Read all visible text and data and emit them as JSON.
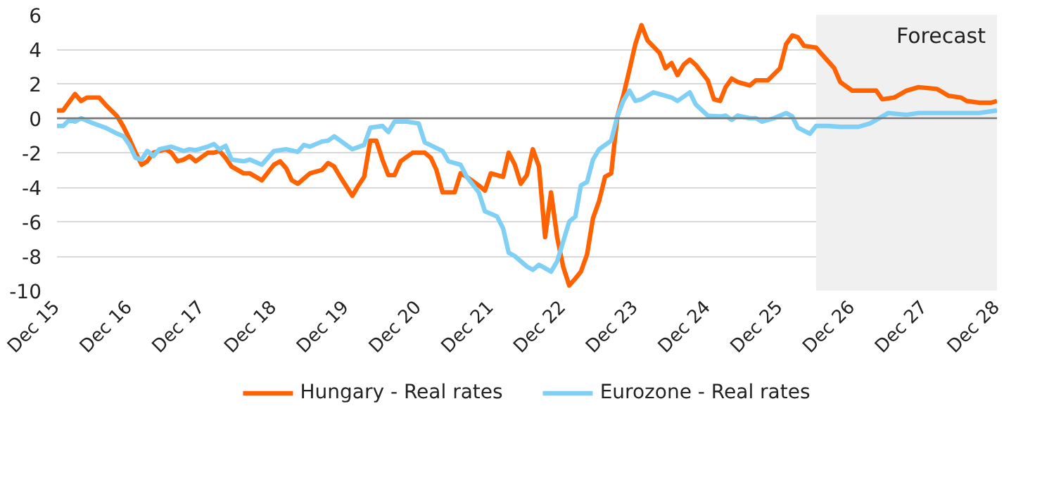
{
  "chart_data": {
    "type": "line",
    "xlim": [
      "2015-12",
      "2028-12"
    ],
    "xticks": [
      {
        "value": "2015-12",
        "label": "Dec 15"
      },
      {
        "value": "2016-12",
        "label": "Dec 16"
      },
      {
        "value": "2017-12",
        "label": "Dec 17"
      },
      {
        "value": "2018-12",
        "label": "Dec 18"
      },
      {
        "value": "2019-12",
        "label": "Dec 19"
      },
      {
        "value": "2020-12",
        "label": "Dec 20"
      },
      {
        "value": "2021-12",
        "label": "Dec 21"
      },
      {
        "value": "2022-12",
        "label": "Dec 22"
      },
      {
        "value": "2023-12",
        "label": "Dec 23"
      },
      {
        "value": "2024-12",
        "label": "Dec 24"
      },
      {
        "value": "2025-12",
        "label": "Dec 25"
      },
      {
        "value": "2026-12",
        "label": "Dec 26"
      },
      {
        "value": "2027-12",
        "label": "Dec 27"
      },
      {
        "value": "2028-12",
        "label": "Dec 28"
      }
    ],
    "ylim": [
      -10,
      6
    ],
    "yticks": [
      -10,
      -8,
      -6,
      -4,
      -2,
      0,
      2,
      4,
      6
    ],
    "grid": "y",
    "legend": "bottom",
    "marker": "none",
    "line_style": "solid",
    "bands": [
      {
        "axis": "x",
        "from": "2026-06",
        "to": "2028-12",
        "label": "Forecast",
        "color": "#f0f0f0"
      }
    ],
    "series": [
      {
        "name": "Hungary - Real rates",
        "color": "#ff6200",
        "x": [
          "2015-12",
          "2016-01",
          "2016-03",
          "2016-04",
          "2016-05",
          "2016-07",
          "2016-08",
          "2016-10",
          "2016-11",
          "2016-12",
          "2017-01",
          "2017-02",
          "2017-03",
          "2017-04",
          "2017-06",
          "2017-07",
          "2017-08",
          "2017-09",
          "2017-10",
          "2017-11",
          "2018-01",
          "2018-02",
          "2018-03",
          "2018-04",
          "2018-05",
          "2018-07",
          "2018-08",
          "2018-10",
          "2018-12",
          "2019-01",
          "2019-02",
          "2019-03",
          "2019-04",
          "2019-06",
          "2019-08",
          "2019-09",
          "2019-10",
          "2019-11",
          "2020-01",
          "2020-02",
          "2020-03",
          "2020-04",
          "2020-05",
          "2020-06",
          "2020-07",
          "2020-08",
          "2020-09",
          "2020-11",
          "2021-01",
          "2021-02",
          "2021-03",
          "2021-04",
          "2021-05",
          "2021-06",
          "2021-07",
          "2021-08",
          "2021-10",
          "2021-11",
          "2021-12",
          "2022-01",
          "2022-02",
          "2022-03",
          "2022-04",
          "2022-05",
          "2022-06",
          "2022-07",
          "2022-08",
          "2022-09",
          "2022-10",
          "2022-11",
          "2022-12",
          "2023-01",
          "2023-02",
          "2023-03",
          "2023-04",
          "2023-05",
          "2023-06",
          "2023-07",
          "2023-08",
          "2023-09",
          "2023-10",
          "2023-11",
          "2023-12",
          "2024-01",
          "2024-02",
          "2024-04",
          "2024-05",
          "2024-06",
          "2024-07",
          "2024-08",
          "2024-09",
          "2024-10",
          "2024-12",
          "2025-01",
          "2025-02",
          "2025-03",
          "2025-04",
          "2025-05",
          "2025-07",
          "2025-08",
          "2025-10",
          "2025-12",
          "2026-01",
          "2026-02",
          "2026-03",
          "2026-04",
          "2026-06",
          "2026-07",
          "2026-09",
          "2026-10",
          "2026-12",
          "2027-02",
          "2027-04",
          "2027-05",
          "2027-07",
          "2027-09",
          "2027-11",
          "2028-02",
          "2028-04",
          "2028-06",
          "2028-07",
          "2028-09",
          "2028-11",
          "2028-12"
        ],
        "values": [
          0.45,
          0.45,
          1.4,
          1.0,
          1.2,
          1.2,
          0.8,
          0.1,
          -0.5,
          -1.2,
          -2.0,
          -2.7,
          -2.5,
          -2.0,
          -1.8,
          -2.0,
          -2.5,
          -2.4,
          -2.2,
          -2.5,
          -2.0,
          -2.0,
          -1.9,
          -2.3,
          -2.8,
          -3.2,
          -3.2,
          -3.6,
          -2.7,
          -2.5,
          -2.9,
          -3.6,
          -3.8,
          -3.2,
          -3.0,
          -2.6,
          -2.8,
          -3.4,
          -4.5,
          -3.9,
          -3.4,
          -1.3,
          -1.3,
          -2.4,
          -3.3,
          -3.3,
          -2.5,
          -2.0,
          -2.0,
          -2.3,
          -3.0,
          -4.3,
          -4.3,
          -4.3,
          -3.2,
          -3.4,
          -3.9,
          -4.2,
          -3.2,
          -3.3,
          -3.4,
          -2.0,
          -2.7,
          -3.8,
          -3.3,
          -1.8,
          -2.8,
          -6.9,
          -4.3,
          -6.9,
          -8.6,
          -9.7,
          -9.3,
          -8.9,
          -7.9,
          -5.8,
          -4.8,
          -3.4,
          -3.2,
          0.1,
          1.3,
          2.8,
          4.3,
          5.4,
          4.5,
          3.8,
          2.9,
          3.2,
          2.5,
          3.1,
          3.4,
          3.1,
          2.2,
          1.1,
          1.0,
          1.8,
          2.3,
          2.1,
          1.9,
          2.2,
          2.2,
          2.9,
          4.3,
          4.8,
          4.7,
          4.2,
          4.1,
          3.7,
          2.9,
          2.1,
          1.6,
          1.6,
          1.6,
          1.1,
          1.2,
          1.6,
          1.8,
          1.7,
          1.3,
          1.2,
          1.0,
          0.9,
          0.9,
          1.0
        ]
      },
      {
        "name": "Eurozone - Real rates",
        "color": "#80d0f5",
        "x": [
          "2015-12",
          "2016-01",
          "2016-02",
          "2016-03",
          "2016-04",
          "2016-06",
          "2016-08",
          "2016-10",
          "2016-11",
          "2016-12",
          "2017-01",
          "2017-02",
          "2017-03",
          "2017-04",
          "2017-05",
          "2017-07",
          "2017-09",
          "2017-10",
          "2017-11",
          "2018-01",
          "2018-02",
          "2018-03",
          "2018-04",
          "2018-05",
          "2018-07",
          "2018-08",
          "2018-10",
          "2018-12",
          "2019-02",
          "2019-04",
          "2019-05",
          "2019-06",
          "2019-08",
          "2019-09",
          "2019-10",
          "2019-12",
          "2020-01",
          "2020-03",
          "2020-04",
          "2020-06",
          "2020-07",
          "2020-08",
          "2020-10",
          "2020-12",
          "2021-01",
          "2021-04",
          "2021-05",
          "2021-07",
          "2021-08",
          "2021-10",
          "2021-11",
          "2022-01",
          "2022-02",
          "2022-03",
          "2022-04",
          "2022-06",
          "2022-07",
          "2022-08",
          "2022-09",
          "2022-10",
          "2022-11",
          "2023-01",
          "2023-02",
          "2023-03",
          "2023-04",
          "2023-05",
          "2023-06",
          "2023-08",
          "2023-09",
          "2023-10",
          "2023-11",
          "2023-12",
          "2024-01",
          "2024-03",
          "2024-05",
          "2024-06",
          "2024-07",
          "2024-09",
          "2024-10",
          "2024-12",
          "2025-02",
          "2025-03",
          "2025-04",
          "2025-05",
          "2025-07",
          "2025-08",
          "2025-09",
          "2025-11",
          "2026-01",
          "2026-02",
          "2026-03",
          "2026-05",
          "2026-06",
          "2026-08",
          "2026-10",
          "2027-01",
          "2027-03",
          "2027-06",
          "2027-09",
          "2027-11",
          "2028-09",
          "2028-12"
        ],
        "values": [
          -0.45,
          -0.45,
          -0.1,
          -0.2,
          0,
          -0.3,
          -0.55,
          -0.9,
          -1.05,
          -1.55,
          -2.3,
          -2.4,
          -1.9,
          -2.2,
          -1.8,
          -1.65,
          -1.9,
          -1.8,
          -1.85,
          -1.65,
          -1.5,
          -1.8,
          -1.6,
          -2.4,
          -2.5,
          -2.4,
          -2.7,
          -1.9,
          -1.8,
          -1.95,
          -1.55,
          -1.65,
          -1.35,
          -1.3,
          -1.05,
          -1.55,
          -1.8,
          -1.55,
          -0.55,
          -0.45,
          -0.8,
          -0.2,
          -0.2,
          -0.3,
          -1.4,
          -1.9,
          -2.5,
          -2.7,
          -3.4,
          -4.3,
          -5.4,
          -5.7,
          -6.4,
          -7.8,
          -8.0,
          -8.6,
          -8.8,
          -8.5,
          -8.7,
          -8.9,
          -8.3,
          -6.0,
          -5.7,
          -3.9,
          -3.7,
          -2.4,
          -1.8,
          -1.3,
          0.1,
          1.0,
          1.6,
          1.0,
          1.1,
          1.5,
          1.3,
          1.2,
          1.0,
          1.5,
          0.8,
          0.15,
          0.1,
          0.15,
          -0.1,
          0.15,
          0,
          0,
          -0.2,
          0,
          0.3,
          0.1,
          -0.55,
          -0.9,
          -0.45,
          -0.45,
          -0.5,
          -0.5,
          -0.3,
          0.3,
          0.2,
          0.3,
          0.3,
          0.45
        ]
      }
    ]
  }
}
